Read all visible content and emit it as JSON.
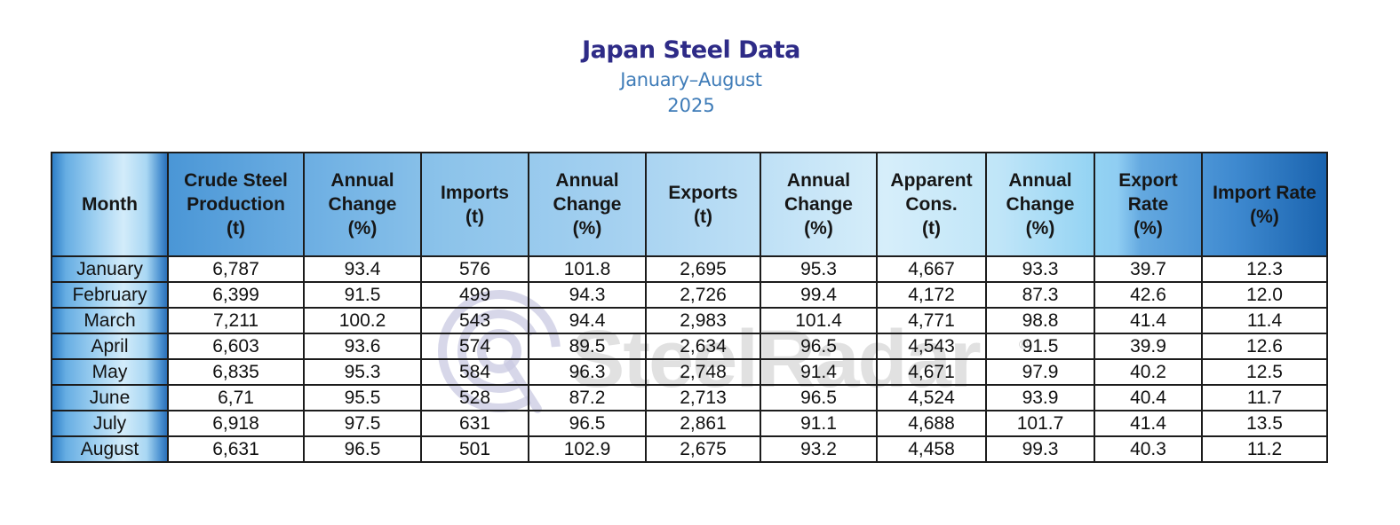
{
  "title": "Japan Steel Data",
  "subtitle": "January–August",
  "year": "2025",
  "watermark": {
    "brand": "SteelRadar",
    "registered_mark": "®",
    "icon": "radar-q-logo-icon"
  },
  "colors": {
    "title": "#2e2b87",
    "subtitle": "#3f7cb8",
    "header_blue_dark": "#1a63ae",
    "header_blue_light": "#d6eefa",
    "border": "#1c1c1c"
  },
  "table": {
    "headers": [
      [
        "Month"
      ],
      [
        "Crude Steel",
        "Production",
        "(t)"
      ],
      [
        "Annual",
        "Change",
        "(%)"
      ],
      [
        "Imports",
        "(t)"
      ],
      [
        "Annual",
        "Change",
        "(%)"
      ],
      [
        "Exports",
        "(t)"
      ],
      [
        "Annual",
        "Change",
        "(%)"
      ],
      [
        "Apparent",
        "Cons.",
        "(t)"
      ],
      [
        "Annual",
        "Change",
        "(%)"
      ],
      [
        "Export",
        "Rate",
        "(%)"
      ],
      [
        "Import Rate",
        "(%)"
      ]
    ],
    "rows": [
      [
        "January",
        "6,787",
        "93.4",
        "576",
        "101.8",
        "2,695",
        "95.3",
        "4,667",
        "93.3",
        "39.7",
        "12.3"
      ],
      [
        "February",
        "6,399",
        "91.5",
        "499",
        "94.3",
        "2,726",
        "99.4",
        "4,172",
        "87.3",
        "42.6",
        "12.0"
      ],
      [
        "March",
        "7,211",
        "100.2",
        "543",
        "94.4",
        "2,983",
        "101.4",
        "4,771",
        "98.8",
        "41.4",
        "11.4"
      ],
      [
        "April",
        "6,603",
        "93.6",
        "574",
        "89.5",
        "2,634",
        "96.5",
        "4,543",
        "91.5",
        "39.9",
        "12.6"
      ],
      [
        "May",
        "6,835",
        "95.3",
        "584",
        "96.3",
        "2,748",
        "91.4",
        "4,671",
        "97.9",
        "40.2",
        "12.5"
      ],
      [
        "June",
        "6,71",
        "95.5",
        "528",
        "87.2",
        "2,713",
        "96.5",
        "4,524",
        "93.9",
        "40.4",
        "11.7"
      ],
      [
        "July",
        "6,918",
        "97.5",
        "631",
        "96.5",
        "2,861",
        "91.1",
        "4,688",
        "101.7",
        "41.4",
        "13.5"
      ],
      [
        "August",
        "6,631",
        "96.5",
        "501",
        "102.9",
        "2,675",
        "93.2",
        "4,458",
        "99.3",
        "40.3",
        "11.2"
      ]
    ]
  }
}
